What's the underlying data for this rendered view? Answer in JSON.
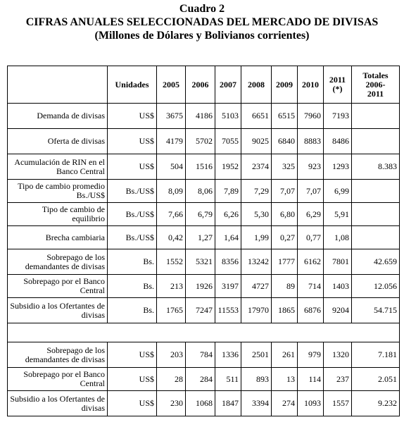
{
  "title": {
    "line1": "Cuadro 2",
    "line2": "CIFRAS ANUALES SELECCIONADAS DEL MERCADO DE DIVISAS",
    "line3": "(Millones de Dólares y Bolivianos corrientes)"
  },
  "table": {
    "headers": {
      "concept": "",
      "unidades": "Unidades",
      "y2005": "2005",
      "y2006": "2006",
      "y2007": "2007",
      "y2008": "2008",
      "y2009": "2009",
      "y2010": "2010",
      "y2011": "2011",
      "y2011_note": "(*)",
      "totales_l1": "Totales",
      "totales_l2": "2006-",
      "totales_l3": "2011"
    },
    "rows": [
      {
        "concept": "Demanda de divisas",
        "unit": "US$",
        "values": [
          "3675",
          "4186",
          "5103",
          "6651",
          "6515",
          "7960",
          "7193"
        ],
        "total": ""
      },
      {
        "concept": "Oferta de divisas",
        "unit": "US$",
        "values": [
          "4179",
          "5702",
          "7055",
          "9025",
          "6840",
          "8883",
          "8486"
        ],
        "total": ""
      },
      {
        "concept": "Acumulación de RIN en el Banco Central",
        "unit": "US$",
        "values": [
          "504",
          "1516",
          "1952",
          "2374",
          "325",
          "923",
          "1293"
        ],
        "total": "8.383"
      },
      {
        "concept": "Tipo de cambio promedio Bs./US$",
        "unit": "Bs./US$",
        "values": [
          "8,09",
          "8,06",
          "7,89",
          "7,29",
          "7,07",
          "7,07",
          "6,99"
        ],
        "total": ""
      },
      {
        "concept": "Tipo de cambio de equilibrio",
        "unit": "Bs./US$",
        "values": [
          "7,66",
          "6,79",
          "6,26",
          "5,30",
          "6,80",
          "6,29",
          "5,91"
        ],
        "total": ""
      },
      {
        "concept": "Brecha cambiaria",
        "unit": "Bs./US$",
        "values": [
          "0,42",
          "1,27",
          "1,64",
          "1,99",
          "0,27",
          "0,77",
          "1,08"
        ],
        "total": ""
      },
      {
        "concept": "Sobrepago de los demandantes de divisas",
        "unit": "Bs.",
        "values": [
          "1552",
          "5321",
          "8356",
          "13242",
          "1777",
          "6162",
          "7801"
        ],
        "total": "42.659"
      },
      {
        "concept": "Sobrepago por el Banco Central",
        "unit": "Bs.",
        "values": [
          "213",
          "1926",
          "3197",
          "4727",
          "89",
          "714",
          "1403"
        ],
        "total": "12.056"
      },
      {
        "concept": "Subsidio a los Ofertantes de divisas",
        "unit": "Bs.",
        "values": [
          "1765",
          "7247",
          "11553",
          "17970",
          "1865",
          "6876",
          "9204"
        ],
        "total": "54.715"
      }
    ],
    "rows_usd": [
      {
        "concept": "Sobrepago de los demandantes de divisas",
        "unit": "US$",
        "values": [
          "203",
          "784",
          "1336",
          "2501",
          "261",
          "979",
          "1320"
        ],
        "total": "7.181"
      },
      {
        "concept": "Sobrepago por el Banco Central",
        "unit": "US$",
        "values": [
          "28",
          "284",
          "511",
          "893",
          "13",
          "114",
          "237"
        ],
        "total": "2.051"
      },
      {
        "concept": "Subsidio a los Ofertantes de divisas",
        "unit": "US$",
        "values": [
          "230",
          "1068",
          "1847",
          "3394",
          "274",
          "1093",
          "1557"
        ],
        "total": "9.232"
      }
    ]
  }
}
